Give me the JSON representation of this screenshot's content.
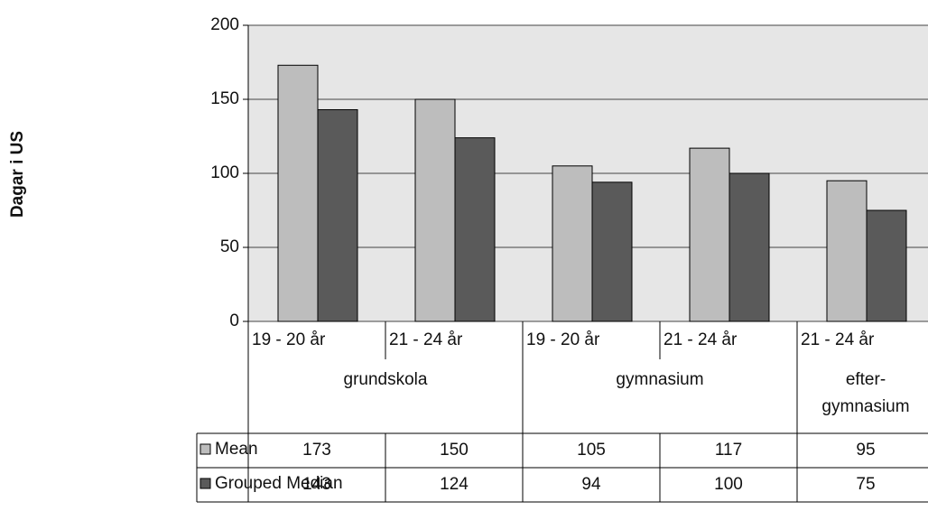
{
  "chart_data": {
    "type": "bar",
    "y_axis_label": "Dagar i US",
    "categories": [
      "19 - 20 år",
      "21 - 24 år",
      "19 - 20 år",
      "21 - 24 år",
      "21 - 24 år"
    ],
    "groups": [
      "grundskola",
      "grundskola",
      "gymnasium",
      "gymnasium",
      "efter-\ngymnasium"
    ],
    "series": [
      {
        "name": "Mean",
        "color": "#bdbdbd",
        "values": [
          173,
          150,
          105,
          117,
          95
        ]
      },
      {
        "name": "Grouped Median",
        "color": "#5a5a5a",
        "values": [
          143,
          124,
          94,
          100,
          75
        ]
      }
    ],
    "ylim": [
      0,
      200
    ],
    "yticks": [
      0,
      50,
      100,
      150,
      200
    ],
    "grid": true
  }
}
